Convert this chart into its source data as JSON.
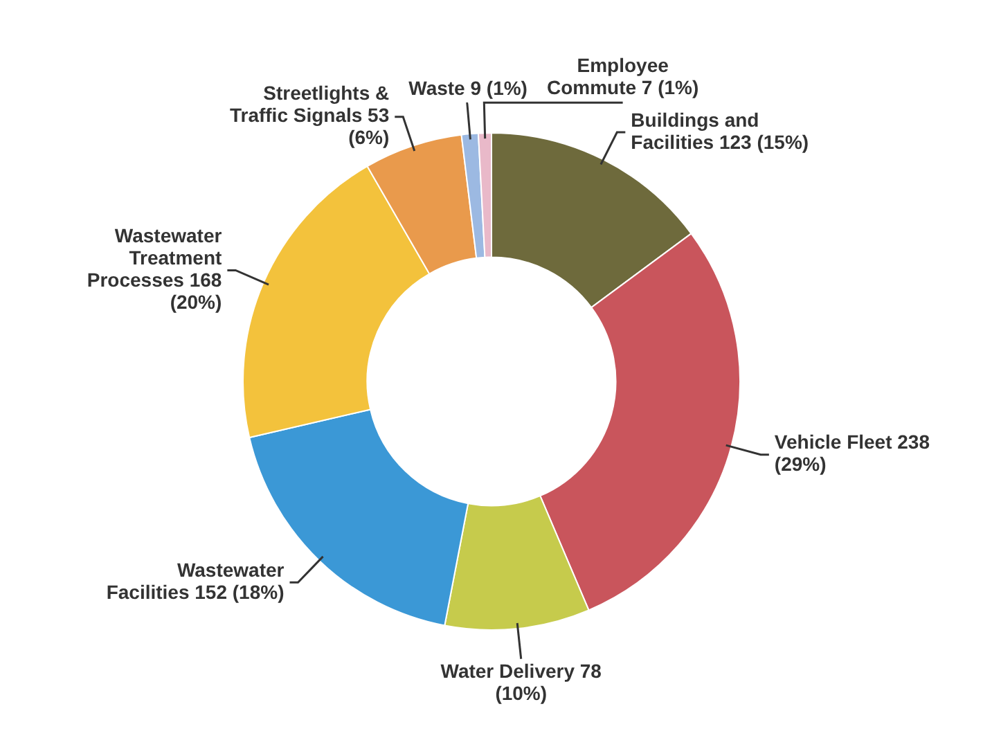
{
  "chart_data": {
    "type": "donut",
    "categories": [
      "Buildings and Facilities",
      "Vehicle Fleet",
      "Water Delivery",
      "Wastewater Facilities",
      "Wastewater Treatment Processes",
      "Streetlights & Traffic Signals",
      "Waste",
      "Employee Commute"
    ],
    "values": [
      123,
      238,
      78,
      152,
      168,
      53,
      9,
      7
    ],
    "value_labels": [
      "123 (15%)",
      "238 (29%)",
      "78 (10%)",
      "152 (18%)",
      "168 (20%)",
      "53 (6%)",
      "9 (1%)",
      "7 (1%)"
    ],
    "colors": [
      "#6e6a3c",
      "#c9555c",
      "#c6cb4c",
      "#3b98d6",
      "#f3c23c",
      "#e99a4c",
      "#9cb9e2",
      "#e9b9c9"
    ],
    "legend": false
  }
}
